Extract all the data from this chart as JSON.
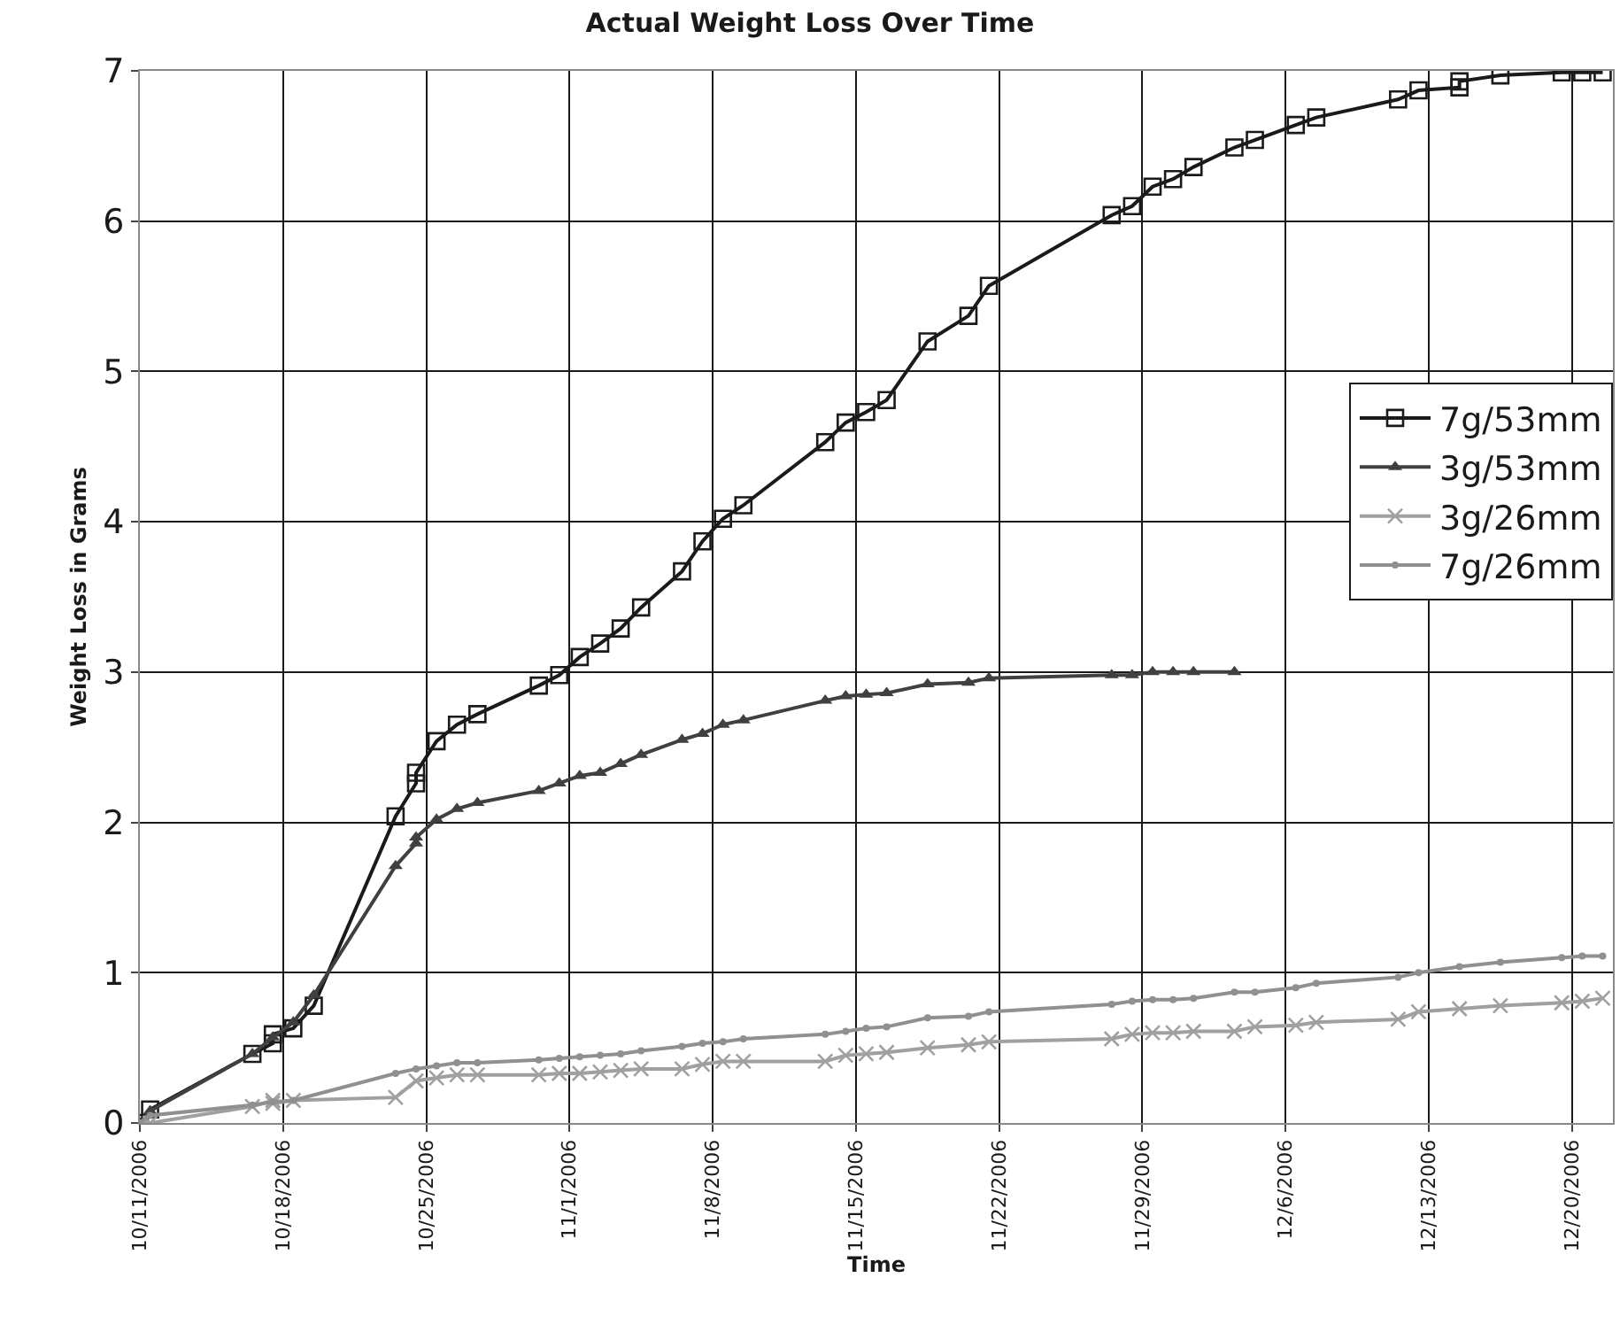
{
  "chart_data": {
    "type": "line",
    "title": "Actual Weight Loss Over Time",
    "xlabel": "Time",
    "ylabel": "Weight Loss in Grams",
    "xlim": [
      "2006-10-11",
      "2006-12-22"
    ],
    "xticks": [
      {
        "value": "2006-10-11",
        "label": "10/11/2006"
      },
      {
        "value": "2006-10-18",
        "label": "10/18/2006"
      },
      {
        "value": "2006-10-25",
        "label": "10/25/2006"
      },
      {
        "value": "2006-11-01",
        "label": "11/1/2006"
      },
      {
        "value": "2006-11-08",
        "label": "11/8/2006"
      },
      {
        "value": "2006-11-15",
        "label": "11/15/2006"
      },
      {
        "value": "2006-11-22",
        "label": "11/22/2006"
      },
      {
        "value": "2006-11-29",
        "label": "11/29/2006"
      },
      {
        "value": "2006-12-06",
        "label": "12/6/2006"
      },
      {
        "value": "2006-12-13",
        "label": "12/13/2006"
      },
      {
        "value": "2006-12-20",
        "label": "12/20/2006"
      }
    ],
    "ylim": [
      0,
      7
    ],
    "yticks": [
      0,
      1,
      2,
      3,
      4,
      5,
      6,
      7
    ],
    "grid": true,
    "legend": "right",
    "line_style": "solid",
    "series": [
      {
        "name": "7g/53mm",
        "color": "#1a1a1a",
        "marker": "square",
        "x": [
          "2006-10-11T00:00",
          "2006-10-11T12:00",
          "2006-10-16T12:00",
          "2006-10-17T12:00",
          "2006-10-17T12:00",
          "2006-10-18T12:00",
          "2006-10-19T12:00",
          "2006-10-23T12:00",
          "2006-10-24T12:00",
          "2006-10-24T12:00",
          "2006-10-25T12:00",
          "2006-10-26T12:00",
          "2006-10-27T12:00",
          "2006-10-30T12:00",
          "2006-10-31T12:00",
          "2006-11-01T12:00",
          "2006-11-02T12:00",
          "2006-11-03T12:00",
          "2006-11-04T12:00",
          "2006-11-06T12:00",
          "2006-11-07T12:00",
          "2006-11-08T12:00",
          "2006-11-09T12:00",
          "2006-11-13T12:00",
          "2006-11-14T12:00",
          "2006-11-15T12:00",
          "2006-11-16T12:00",
          "2006-11-18T12:00",
          "2006-11-20T12:00",
          "2006-11-21T12:00",
          "2006-11-27T12:00",
          "2006-11-28T12:00",
          "2006-11-29T12:00",
          "2006-11-30T12:00",
          "2006-12-01T12:00",
          "2006-12-03T12:00",
          "2006-12-04T12:00",
          "2006-12-06T12:00",
          "2006-12-07T12:00",
          "2006-12-11T12:00",
          "2006-12-12T12:00",
          "2006-12-14T12:00",
          "2006-12-14T12:00",
          "2006-12-16T12:00",
          "2006-12-19T12:00",
          "2006-12-20T12:00",
          "2006-12-21T12:00"
        ],
        "values": [
          0,
          0.09,
          0.46,
          0.53,
          0.59,
          0.63,
          0.78,
          2.04,
          2.26,
          2.33,
          2.54,
          2.65,
          2.72,
          2.91,
          2.98,
          3.1,
          3.19,
          3.29,
          3.43,
          3.67,
          3.87,
          4.02,
          4.11,
          4.53,
          4.66,
          4.73,
          4.81,
          5.2,
          5.37,
          5.57,
          6.04,
          6.1,
          6.23,
          6.28,
          6.36,
          6.49,
          6.54,
          6.64,
          6.69,
          6.81,
          6.87,
          6.89,
          6.93,
          6.97,
          6.99,
          6.99,
          6.99
        ]
      },
      {
        "name": "3g/53mm",
        "color": "#404040",
        "marker": "triangle",
        "x": [
          "2006-10-11T00:00",
          "2006-10-11T12:00",
          "2006-10-16T12:00",
          "2006-10-17T12:00",
          "2006-10-18T12:00",
          "2006-10-19T12:00",
          "2006-10-23T12:00",
          "2006-10-24T12:00",
          "2006-10-24T12:00",
          "2006-10-25T12:00",
          "2006-10-26T12:00",
          "2006-10-27T12:00",
          "2006-10-30T12:00",
          "2006-10-31T12:00",
          "2006-11-01T12:00",
          "2006-11-02T12:00",
          "2006-11-03T12:00",
          "2006-11-04T12:00",
          "2006-11-06T12:00",
          "2006-11-07T12:00",
          "2006-11-08T12:00",
          "2006-11-09T12:00",
          "2006-11-13T12:00",
          "2006-11-14T12:00",
          "2006-11-15T12:00",
          "2006-11-16T12:00",
          "2006-11-18T12:00",
          "2006-11-20T12:00",
          "2006-11-21T12:00",
          "2006-11-27T12:00",
          "2006-11-28T12:00",
          "2006-11-29T12:00",
          "2006-11-30T12:00",
          "2006-12-01T12:00",
          "2006-12-03T12:00"
        ],
        "values": [
          0,
          0.08,
          0.46,
          0.57,
          0.67,
          0.85,
          1.71,
          1.86,
          1.9,
          2.02,
          2.09,
          2.13,
          2.21,
          2.26,
          2.31,
          2.33,
          2.39,
          2.45,
          2.55,
          2.59,
          2.65,
          2.68,
          2.81,
          2.84,
          2.85,
          2.86,
          2.92,
          2.93,
          2.96,
          2.98,
          2.98,
          3.0,
          3.0,
          3.0,
          3.0
        ]
      },
      {
        "name": "3g/26mm",
        "color": "#a0a0a0",
        "marker": "cross",
        "x": [
          "2006-10-11T00:00",
          "2006-10-11T12:00",
          "2006-10-16T12:00",
          "2006-10-17T12:00",
          "2006-10-17T12:00",
          "2006-10-18T12:00",
          "2006-10-23T12:00",
          "2006-10-24T12:00",
          "2006-10-25T12:00",
          "2006-10-26T12:00",
          "2006-10-27T12:00",
          "2006-10-30T12:00",
          "2006-10-31T12:00",
          "2006-11-01T12:00",
          "2006-11-02T12:00",
          "2006-11-03T12:00",
          "2006-11-04T12:00",
          "2006-11-06T12:00",
          "2006-11-07T12:00",
          "2006-11-08T12:00",
          "2006-11-09T12:00",
          "2006-11-13T12:00",
          "2006-11-14T12:00",
          "2006-11-15T12:00",
          "2006-11-16T12:00",
          "2006-11-18T12:00",
          "2006-11-20T12:00",
          "2006-11-21T12:00",
          "2006-11-27T12:00",
          "2006-11-28T12:00",
          "2006-11-29T12:00",
          "2006-11-30T12:00",
          "2006-12-01T12:00",
          "2006-12-03T12:00",
          "2006-12-04T12:00",
          "2006-12-06T12:00",
          "2006-12-07T12:00",
          "2006-12-11T12:00",
          "2006-12-12T12:00",
          "2006-12-14T12:00",
          "2006-12-16T12:00",
          "2006-12-19T12:00",
          "2006-12-20T12:00",
          "2006-12-21T12:00"
        ],
        "values": [
          0,
          0.0,
          0.11,
          0.15,
          0.13,
          0.15,
          0.17,
          0.28,
          0.3,
          0.32,
          0.32,
          0.32,
          0.33,
          0.33,
          0.34,
          0.35,
          0.36,
          0.36,
          0.39,
          0.41,
          0.41,
          0.41,
          0.45,
          0.46,
          0.47,
          0.5,
          0.52,
          0.54,
          0.56,
          0.59,
          0.6,
          0.6,
          0.61,
          0.61,
          0.64,
          0.65,
          0.67,
          0.69,
          0.74,
          0.76,
          0.78,
          0.8,
          0.81,
          0.83
        ]
      },
      {
        "name": "7g/26mm",
        "color": "#909090",
        "marker": "circle",
        "x": [
          "2006-10-11T00:00",
          "2006-10-11T12:00",
          "2006-10-16T12:00",
          "2006-10-17T12:00",
          "2006-10-18T12:00",
          "2006-10-23T12:00",
          "2006-10-24T12:00",
          "2006-10-25T12:00",
          "2006-10-26T12:00",
          "2006-10-27T12:00",
          "2006-10-30T12:00",
          "2006-10-31T12:00",
          "2006-11-01T12:00",
          "2006-11-02T12:00",
          "2006-11-03T12:00",
          "2006-11-04T12:00",
          "2006-11-06T12:00",
          "2006-11-07T12:00",
          "2006-11-08T12:00",
          "2006-11-09T12:00",
          "2006-11-13T12:00",
          "2006-11-14T12:00",
          "2006-11-15T12:00",
          "2006-11-16T12:00",
          "2006-11-18T12:00",
          "2006-11-20T12:00",
          "2006-11-21T12:00",
          "2006-11-27T12:00",
          "2006-11-28T12:00",
          "2006-11-29T12:00",
          "2006-11-30T12:00",
          "2006-12-01T12:00",
          "2006-12-03T12:00",
          "2006-12-04T12:00",
          "2006-12-06T12:00",
          "2006-12-07T12:00",
          "2006-12-11T12:00",
          "2006-12-12T12:00",
          "2006-12-14T12:00",
          "2006-12-16T12:00",
          "2006-12-19T12:00",
          "2006-12-20T12:00",
          "2006-12-21T12:00"
        ],
        "values": [
          0,
          0.05,
          0.12,
          0.14,
          0.15,
          0.33,
          0.36,
          0.38,
          0.4,
          0.4,
          0.42,
          0.43,
          0.44,
          0.45,
          0.46,
          0.48,
          0.51,
          0.53,
          0.54,
          0.56,
          0.59,
          0.61,
          0.63,
          0.64,
          0.7,
          0.71,
          0.74,
          0.79,
          0.81,
          0.82,
          0.82,
          0.83,
          0.87,
          0.87,
          0.9,
          0.93,
          0.97,
          1.0,
          1.04,
          1.07,
          1.1,
          1.11,
          1.11
        ]
      }
    ]
  }
}
